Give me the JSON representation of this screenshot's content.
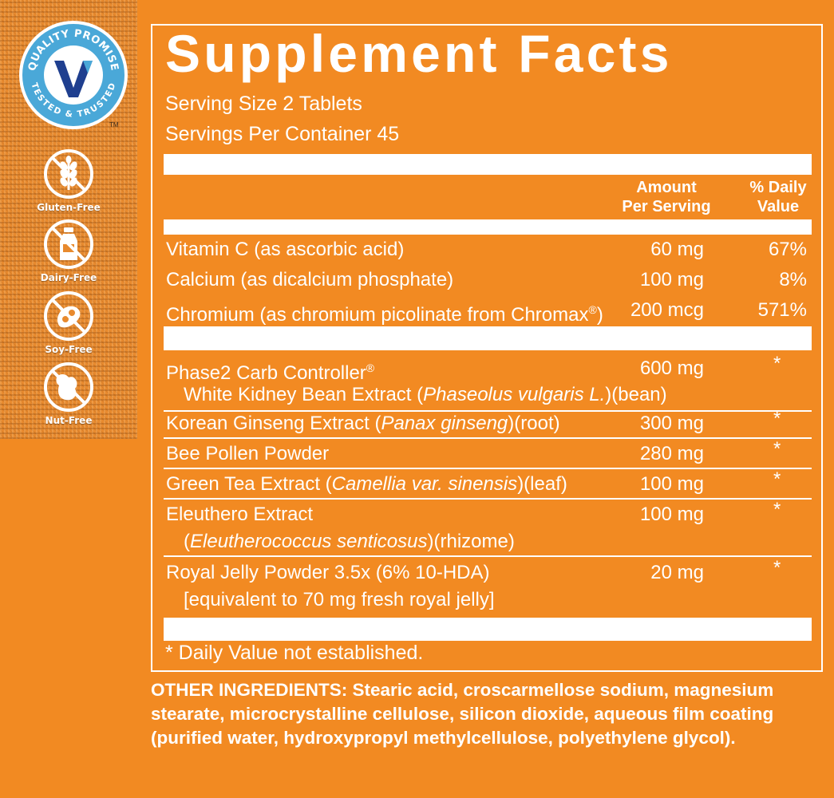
{
  "badges": {
    "quality": {
      "top_text": "QUALITY PROMISE",
      "bottom_text": "TESTED & TRUSTED",
      "tm": "TM"
    },
    "allergens": [
      {
        "label": "Gluten-Free",
        "icon": "wheat-icon"
      },
      {
        "label": "Dairy-Free",
        "icon": "milk-bottle-icon"
      },
      {
        "label": "Soy-Free",
        "icon": "soybean-icon"
      },
      {
        "label": "Nut-Free",
        "icon": "peanut-icon"
      }
    ]
  },
  "facts": {
    "title": "Supplement Facts",
    "serving_size": "Serving Size 2 Tablets",
    "servings_per_container": "Servings Per Container 45",
    "header": {
      "amount_line1": "Amount",
      "amount_line2": "Per Serving",
      "dv_line1": "% Daily",
      "dv_line2": "Value"
    },
    "vitamins": [
      {
        "name": "Vitamin C (as ascorbic acid)",
        "amount": "60 mg",
        "dv": "67%"
      },
      {
        "name": "Calcium (as dicalcium phosphate)",
        "amount": "100 mg",
        "dv": "8%"
      },
      {
        "name": "Chromium (as chromium picolinate from Chromax",
        "reg": "®",
        "name_end": ")",
        "amount": "200 mcg",
        "dv": "571%"
      }
    ],
    "blend": [
      {
        "name": "Phase2 Carb Controller",
        "reg": "®",
        "sub_pre": "White Kidney Bean Extract (",
        "sub_italic": "Phaseolus vulgaris L.",
        "sub_post": ")(bean)",
        "amount": "600 mg",
        "dv": "*"
      },
      {
        "name_pre": "Korean Ginseng Extract (",
        "name_italic": "Panax ginseng",
        "name_post": ")(root)",
        "amount": "300 mg",
        "dv": "*"
      },
      {
        "name": "Bee Pollen Powder",
        "amount": "280 mg",
        "dv": "*"
      },
      {
        "name_pre": "Green Tea Extract (",
        "name_italic": "Camellia var. sinensis",
        "name_post": ")(leaf)",
        "amount": "100 mg",
        "dv": "*"
      },
      {
        "name": "Eleuthero Extract",
        "sub_pre": "(",
        "sub_italic": "Eleutherococcus senticosus",
        "sub_post": ")(rhizome)",
        "amount": "100 mg",
        "dv": "*"
      },
      {
        "name": "Royal Jelly Powder 3.5x (6% 10-HDA)",
        "sub": "[equivalent to 70 mg fresh royal jelly]",
        "amount": "20 mg",
        "dv": "*"
      }
    ],
    "footnote": "* Daily Value not established."
  },
  "other_ingredients": {
    "label": "OTHER INGREDIENTS:",
    "text": " Stearic acid, croscarmellose sodium, magnesium stearate, microcrystalline cellulose, silicon dioxide, aqueous film coating (purified water, hydroxypropyl methylcellulose, polyethylene glycol)."
  },
  "colors": {
    "background": "#f28a22",
    "text": "#ffffff",
    "badge_blue": "#1f3f8f",
    "badge_ring": "#4aa8d8"
  }
}
